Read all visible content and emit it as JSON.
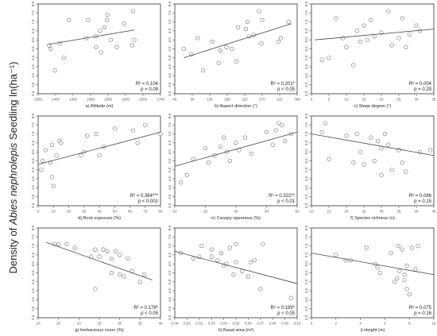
{
  "figure": {
    "ylabel_prefix": "Density of ",
    "ylabel_species": "Abies nephrolepis",
    "ylabel_suffix": " Seedling ln(ha⁻¹)"
  },
  "chart_data": [
    {
      "type": "scatter",
      "label": "a) Altitude (m)",
      "xlim": [
        1350,
        1700
      ],
      "xticks": [
        "1350",
        "1400",
        "1450",
        "1500",
        "1550",
        "1600",
        "1650",
        "1700"
      ],
      "ylim": [
        3.0,
        8.0
      ],
      "yticks": [
        "3.0",
        "3.5",
        "4.0",
        "4.5",
        "5.0",
        "5.5",
        "6.0",
        "6.5",
        "7.0",
        "7.5",
        "8.0"
      ],
      "x": [
        1381,
        1386,
        1398,
        1412,
        1423,
        1438,
        1488,
        1493,
        1515,
        1516,
        1527,
        1530,
        1540,
        1547,
        1548,
        1558,
        1575,
        1596,
        1619,
        1621,
        1625
      ],
      "y": [
        5.7,
        5.5,
        4.3,
        5.8,
        5.0,
        7.1,
        6.1,
        7.1,
        6.2,
        5.6,
        6.5,
        5.3,
        6.7,
        7.1,
        7.4,
        6.0,
        5.6,
        6.9,
        5.7,
        7.6,
        6.0
      ],
      "trend": [
        [
          1380,
          5.75
        ],
        [
          1625,
          6.55
        ]
      ],
      "stat_r2": "R² = 0.104",
      "stat_p": "p = 0.09",
      "xmin": 1350
    },
    {
      "type": "scatter",
      "label": "b) Aspect direction (°)",
      "xlim": [
        45,
        360
      ],
      "xticks": [
        "45",
        "90",
        "135",
        "180",
        "225",
        "270",
        "315",
        "360"
      ],
      "ylim": [
        3.0,
        8.0
      ],
      "yticks": [
        "3.0",
        "3.5",
        "4.0",
        "4.5",
        "5.0",
        "5.5",
        "6.0",
        "6.5",
        "7.0",
        "7.5",
        "8.0"
      ],
      "x": [
        68,
        88,
        104,
        118,
        142,
        158,
        162,
        178,
        192,
        204,
        208,
        228,
        232,
        236,
        248,
        262,
        268,
        270,
        312,
        318,
        338
      ],
      "y": [
        5.5,
        5.2,
        6.1,
        4.3,
        5.9,
        4.7,
        5.4,
        5.6,
        5.5,
        4.8,
        6.7,
        6.6,
        7.0,
        6.2,
        6.3,
        7.6,
        5.8,
        7.1,
        5.9,
        6.1,
        7.0
      ],
      "trend": [
        [
          68,
          5.0
        ],
        [
          345,
          6.9
        ]
      ],
      "stat_r2": "R² = 0.201*",
      "stat_p": "p < 0.05"
    },
    {
      "type": "scatter",
      "label": "c) Slope degree (°)",
      "xlim": [
        0,
        35
      ],
      "xticks": [
        "0",
        "5",
        "10",
        "15",
        "20",
        "25",
        "30",
        "35"
      ],
      "ylim": [
        3.0,
        8.0
      ],
      "yticks": [
        "3.0",
        "3.5",
        "4.0",
        "4.5",
        "5.0",
        "5.5",
        "6.0",
        "6.5",
        "7.0",
        "7.5",
        "8.0"
      ],
      "x": [
        3,
        5,
        7,
        9,
        10,
        12,
        13,
        14,
        15,
        16,
        17,
        18,
        20,
        22,
        23,
        25,
        26,
        27,
        28,
        30,
        31
      ],
      "y": [
        4.9,
        5.0,
        7.2,
        6.1,
        5.6,
        4.6,
        6.5,
        5.9,
        6.8,
        6.0,
        7.1,
        6.2,
        6.4,
        7.6,
        5.7,
        6.1,
        7.2,
        5.6,
        6.3,
        6.8,
        6.5
      ],
      "trend": [
        [
          1,
          6.0
        ],
        [
          35,
          6.6
        ]
      ],
      "stat_r2": "R² = 0.004",
      "stat_p": "p = 0.29"
    },
    {
      "type": "scatter",
      "label": "d) Rock exposure (%)",
      "xlim": [
        0,
        80
      ],
      "xticks": [
        "0",
        "10",
        "20",
        "30",
        "40",
        "50",
        "60",
        "70",
        "80"
      ],
      "ylim": [
        3.0,
        8.0
      ],
      "yticks": [
        "3.0",
        "3.5",
        "4.0",
        "4.5",
        "5.0",
        "5.5",
        "6.0",
        "6.5",
        "7.0",
        "7.5",
        "8.0"
      ],
      "x": [
        2,
        3,
        5,
        8,
        9,
        9,
        10,
        12,
        14,
        15,
        28,
        30,
        32,
        38,
        40,
        43,
        50,
        62,
        65,
        70,
        80
      ],
      "y": [
        5.0,
        5.5,
        6.1,
        5.4,
        6.4,
        4.6,
        4.1,
        5.8,
        6.6,
        6.5,
        5.8,
        6.0,
        6.9,
        7.0,
        5.8,
        6.3,
        7.3,
        7.2,
        6.5,
        7.5,
        7.0
      ],
      "trend": [
        [
          0,
          5.3
        ],
        [
          80,
          7.1
        ]
      ],
      "stat_r2": "R² = 0.364***",
      "stat_p": "p < 0.001"
    },
    {
      "type": "scatter",
      "label": "e) Canopy openness (%)",
      "xlim": [
        10,
        50
      ],
      "xticks": [
        "10",
        "20",
        "30",
        "40",
        "50"
      ],
      "ylim": [
        3.0,
        8.0
      ],
      "yticks": [
        "3.0",
        "3.5",
        "4.0",
        "4.5",
        "5.0",
        "5.5",
        "6.0",
        "6.5",
        "7.0",
        "7.5",
        "8.0"
      ],
      "x": [
        12,
        14,
        16,
        20,
        21,
        23,
        25,
        26,
        27,
        28,
        30,
        31,
        33,
        35,
        40,
        42,
        43,
        44,
        45,
        46,
        48
      ],
      "y": [
        4.3,
        4.7,
        5.6,
        6.2,
        5.4,
        5.8,
        6.3,
        6.8,
        6.0,
        5.5,
        6.5,
        6.1,
        6.8,
        5.9,
        7.1,
        6.4,
        7.2,
        7.6,
        7.5,
        6.6,
        7.0
      ],
      "trend": [
        [
          10,
          5.2
        ],
        [
          50,
          7.1
        ]
      ],
      "stat_r2": "R² = 0.322**",
      "stat_p": "p < 0.01"
    },
    {
      "type": "scatter",
      "label": "f) Species richness (n)",
      "xlim": [
        10,
        45
      ],
      "xticks": [
        "10",
        "15",
        "20",
        "25",
        "30",
        "35",
        "40",
        "45"
      ],
      "ylim": [
        3.0,
        8.0
      ],
      "yticks": [
        "3.0",
        "3.5",
        "4.0",
        "4.5",
        "5.0",
        "5.5",
        "6.0",
        "6.5",
        "7.0",
        "7.5",
        "8.0"
      ],
      "x": [
        13,
        14,
        15,
        20,
        22,
        23,
        24,
        25,
        27,
        28,
        29,
        30,
        30,
        31,
        32,
        33,
        35,
        36,
        37,
        41,
        44
      ],
      "y": [
        7.1,
        7.6,
        5.6,
        6.9,
        5.4,
        7.0,
        6.0,
        5.3,
        6.8,
        5.5,
        6.6,
        6.2,
        4.7,
        7.0,
        6.4,
        5.0,
        6.1,
        5.4,
        4.9,
        6.0,
        6.1
      ],
      "trend": [
        [
          10,
          7.0
        ],
        [
          45,
          5.8
        ]
      ],
      "stat_r2": "R² = 0.086",
      "stat_p": "p = 0.15"
    },
    {
      "type": "scatter",
      "label": "g) herbaceous cover (%)",
      "xlim": [
        10,
        40
      ],
      "xticks": [
        "10",
        "15",
        "20",
        "25",
        "30",
        "35",
        "40"
      ],
      "ylim": [
        3.0,
        8.0
      ],
      "yticks": [
        "3.0",
        "3.5",
        "4.0",
        "4.5",
        "5.0",
        "5.5",
        "6.0",
        "6.5",
        "7.0",
        "7.5",
        "8.0"
      ],
      "x": [
        14,
        15,
        17,
        19,
        23,
        24,
        24,
        25,
        26,
        26,
        27,
        28,
        28,
        29,
        30,
        30,
        31,
        32,
        33,
        35,
        36
      ],
      "y": [
        7.1,
        7.1,
        7.1,
        6.9,
        6.4,
        6.8,
        4.6,
        6.4,
        6.8,
        6.8,
        6.7,
        6.3,
        5.5,
        6.7,
        5.4,
        6.5,
        5.3,
        6.3,
        5.6,
        5.0,
        5.4
      ],
      "trend": [
        [
          12,
          7.2
        ],
        [
          38,
          5.1
        ]
      ],
      "stat_r2": "R² = 0.178*",
      "stat_p": "p < 0.05"
    },
    {
      "type": "scatter",
      "label": "h) Basal area  (m²)",
      "xlim": [
        0,
        0.1
      ],
      "xticks": [
        "0.00",
        "0.01",
        "0.02",
        "0.03",
        "0.04",
        "0.05",
        "0.06",
        "0.07",
        "0.08",
        "0.09",
        "0.10"
      ],
      "ylim": [
        3.0,
        8.0
      ],
      "yticks": [
        "3.0",
        "3.5",
        "4.0",
        "4.5",
        "5.0",
        "5.5",
        "6.0",
        "6.5",
        "7.0",
        "7.5",
        "8.0"
      ],
      "x": [
        0.005,
        0.015,
        0.02,
        0.022,
        0.03,
        0.03,
        0.035,
        0.038,
        0.04,
        0.042,
        0.045,
        0.048,
        0.05,
        0.05,
        0.055,
        0.06,
        0.062,
        0.065,
        0.07,
        0.072,
        0.095
      ],
      "y": [
        6.6,
        6.3,
        6.4,
        7.0,
        6.8,
        6.4,
        6.2,
        6.6,
        5.9,
        6.0,
        6.9,
        5.4,
        6.1,
        7.1,
        5.6,
        5.3,
        6.1,
        6.2,
        4.6,
        7.1,
        4.1
      ],
      "trend": [
        [
          0,
          6.7
        ],
        [
          0.1,
          4.9
        ]
      ],
      "stat_r2": "R² = 0.199*",
      "stat_p": "p < 0.05"
    },
    {
      "type": "scatter",
      "label": "i) Height (m)",
      "xlim": [
        0,
        10
      ],
      "xticks": [
        "0",
        "2",
        "4",
        "6",
        "8",
        "10"
      ],
      "ylim": [
        3.0,
        8.0
      ],
      "yticks": [
        "3.0",
        "3.5",
        "4.0",
        "4.5",
        "5.0",
        "5.5",
        "6.0",
        "6.5",
        "7.0",
        "7.5",
        "8.0"
      ],
      "x": [
        2.0,
        2.8,
        3.2,
        4.5,
        5.2,
        5.4,
        5.6,
        6.5,
        6.8,
        7.0,
        7.1,
        7.2,
        7.4,
        7.6,
        7.6,
        7.8,
        7.8,
        8.0,
        8.2,
        8.5,
        8.7
      ],
      "y": [
        6.5,
        6.2,
        6.2,
        6.9,
        6.0,
        5.8,
        5.5,
        6.6,
        5.0,
        5.2,
        7.0,
        5.6,
        6.8,
        5.1,
        5.4,
        4.6,
        5.9,
        4.3,
        6.9,
        5.7,
        7.0
      ],
      "trend": [
        [
          0,
          6.6
        ],
        [
          10,
          5.4
        ]
      ],
      "stat_r2": "R² = 0.075",
      "stat_p": "p = 0.16"
    }
  ]
}
